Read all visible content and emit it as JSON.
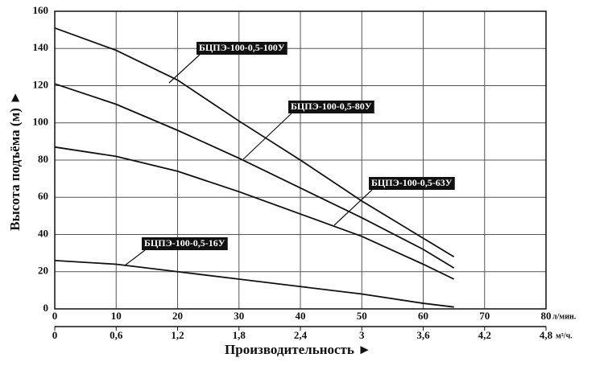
{
  "chart_data": {
    "type": "line",
    "y_label": "Высота подъёма (м) ►",
    "x_label": "Производительность ►",
    "x_unit": "л/мин.",
    "x2_unit": "м³/ч.",
    "x": [
      0,
      10,
      20,
      30,
      40,
      50,
      60,
      65
    ],
    "series": [
      {
        "name": "БЦПЭ-100-0,5-100У",
        "color": "#111111",
        "values": [
          151,
          139,
          123,
          101,
          80,
          58,
          38,
          28
        ]
      },
      {
        "name": "БЦПЭ-100-0,5-80У",
        "color": "#111111",
        "values": [
          121,
          110,
          96,
          81,
          65,
          49,
          32,
          22
        ]
      },
      {
        "name": "БЦПЭ-100-0,5-63У",
        "color": "#111111",
        "values": [
          87,
          82,
          74,
          63,
          51,
          39,
          24,
          16
        ]
      },
      {
        "name": "БЦПЭ-100-0,5-16У",
        "color": "#111111",
        "values": [
          26,
          24,
          20,
          16,
          12,
          8,
          3,
          1
        ]
      }
    ],
    "xlim": [
      0,
      80
    ],
    "xticks": [
      0,
      10,
      20,
      30,
      40,
      50,
      60,
      70,
      80
    ],
    "x2lim": [
      0,
      4.8
    ],
    "x2ticks": [
      0,
      {
        "value": 0.6,
        "label": "0,6"
      },
      {
        "value": 1.2,
        "label": "1,2"
      },
      {
        "value": 1.8,
        "label": "1,8"
      },
      {
        "value": 2.4,
        "label": "2,4"
      },
      3,
      {
        "value": 3.6,
        "label": "3,6"
      },
      {
        "value": 4.2,
        "label": "4,2"
      },
      {
        "value": 4.8,
        "label": "4,8"
      }
    ],
    "ylim": [
      0,
      160
    ],
    "yticks": [
      0,
      20,
      40,
      60,
      80,
      100,
      120,
      140,
      160
    ],
    "grid": true
  }
}
